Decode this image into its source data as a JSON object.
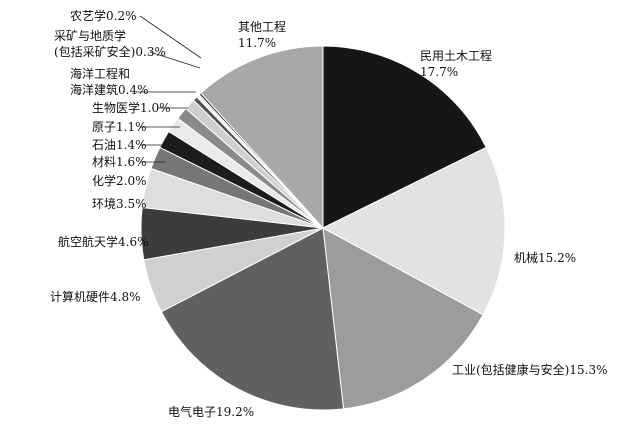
{
  "chart_data": {
    "type": "pie",
    "start_angle_deg": 0,
    "direction": "clockwise",
    "slices": [
      {
        "label": "民用土木工程",
        "value": 17.7,
        "value_text": "17.7%",
        "color": "#161616"
      },
      {
        "label": "机械",
        "value": 15.2,
        "value_text": "15.2%",
        "color": "#e2e2e2"
      },
      {
        "label": "工业(包括健康与安全)",
        "value": 15.3,
        "value_text": "15.3%",
        "color": "#9c9c9c"
      },
      {
        "label": "电气电子",
        "value": 19.2,
        "value_text": "19.2%",
        "color": "#606060"
      },
      {
        "label": "计算机硬件",
        "value": 4.8,
        "value_text": "4.8%",
        "color": "#d0d0d0"
      },
      {
        "label": "航空航天学",
        "value": 4.6,
        "value_text": "4.6%",
        "color": "#3c3c3c"
      },
      {
        "label": "环境",
        "value": 3.5,
        "value_text": "3.5%",
        "color": "#dedede"
      },
      {
        "label": "化学",
        "value": 2.0,
        "value_text": "2.0%",
        "color": "#767676"
      },
      {
        "label": "材料",
        "value": 1.6,
        "value_text": "1.6%",
        "color": "#1c1c1c"
      },
      {
        "label": "石油",
        "value": 1.4,
        "value_text": "1.4%",
        "color": "#eaeaea"
      },
      {
        "label": "原子",
        "value": 1.1,
        "value_text": "1.1%",
        "color": "#8a8a8a"
      },
      {
        "label": "生物医学",
        "value": 1.0,
        "value_text": "1.0%",
        "color": "#cfcfcf"
      },
      {
        "label": "海洋工程和海洋建筑",
        "value": 0.4,
        "value_text": "0.4%",
        "color": "#505050"
      },
      {
        "label": "采矿与地质学(包括采矿安全)",
        "value": 0.3,
        "value_text": "0.3%",
        "color": "#f0f0f0"
      },
      {
        "label": "农艺学",
        "value": 0.2,
        "value_text": "0.2%",
        "color": "#2a2a2a"
      },
      {
        "label": "其他工程",
        "value": 11.7,
        "value_text": "11.7%",
        "color": "#a8a8a8"
      }
    ],
    "labels_display": [
      [
        "民用土木工程",
        "17.7%"
      ],
      [
        "机械15.2%"
      ],
      [
        "工业(包括健康与安全)15.3%"
      ],
      [
        "电气电子19.2%"
      ],
      [
        "计算机硬件4.8%"
      ],
      [
        "航空航天学4.6%"
      ],
      [
        "环境3.5%"
      ],
      [
        "化学2.0%"
      ],
      [
        "材料1.6%"
      ],
      [
        "石油1.4%"
      ],
      [
        "原子1.1%"
      ],
      [
        "生物医学1.0%"
      ],
      [
        "海洋工程和",
        "海洋建筑0.4%"
      ],
      [
        "采矿与地质学",
        "(包括采矿安全)0.3%"
      ],
      [
        "农艺学0.2%"
      ],
      [
        "其他工程",
        "11.7%"
      ]
    ]
  }
}
